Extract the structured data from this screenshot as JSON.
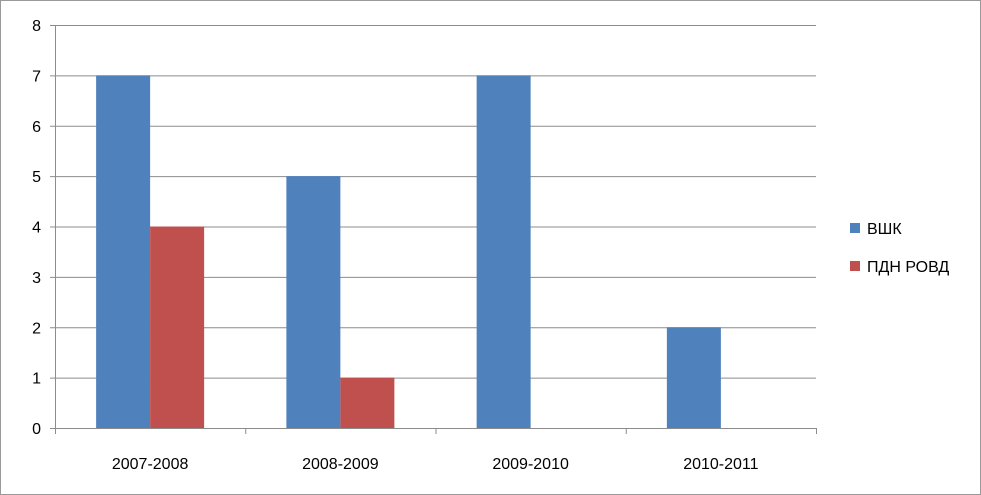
{
  "chart_data": {
    "type": "bar",
    "categories": [
      "2007-2008",
      "2008-2009",
      "2009-2010",
      "2010-2011"
    ],
    "series": [
      {
        "name": "ВШК",
        "values": [
          7,
          5,
          7,
          2
        ],
        "color": "#4F81BD"
      },
      {
        "name": "ПДН РОВД",
        "values": [
          4,
          1,
          0,
          0
        ],
        "color": "#C0504D"
      }
    ],
    "title": "",
    "xlabel": "",
    "ylabel": "",
    "ylim": [
      0,
      8
    ],
    "yticks": [
      0,
      1,
      2,
      3,
      4,
      5,
      6,
      7,
      8
    ],
    "grid": true,
    "legend_position": "right"
  }
}
